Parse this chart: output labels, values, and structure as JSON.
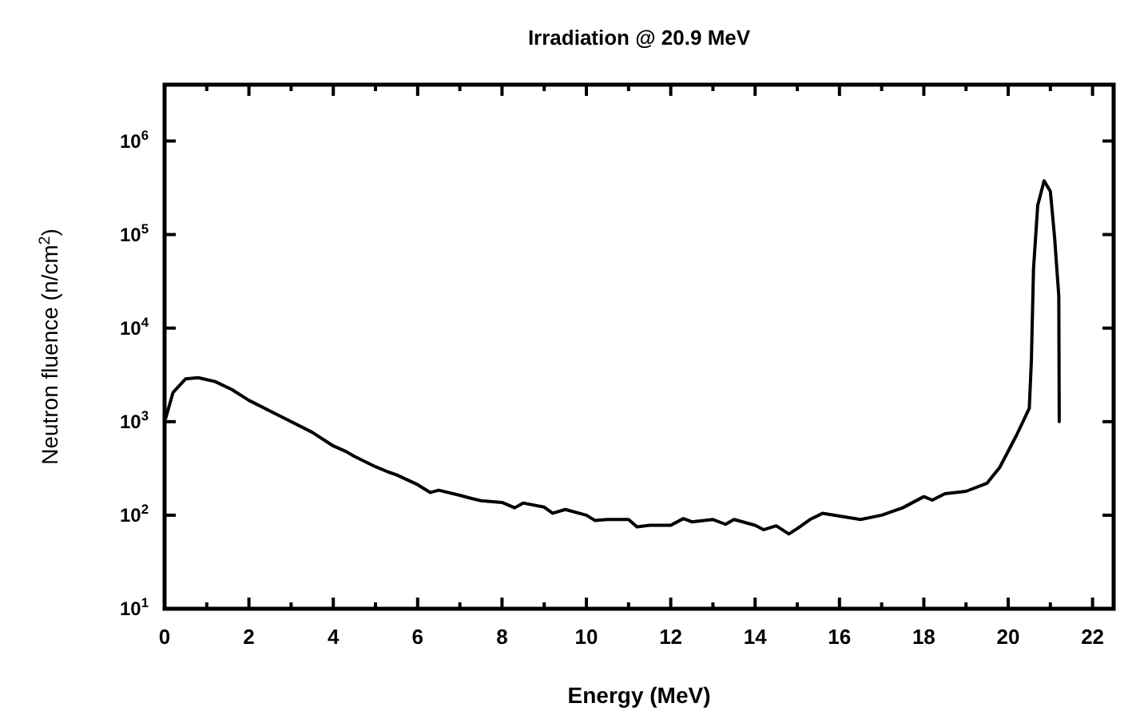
{
  "chart_data": {
    "type": "line",
    "title": "Irradiation @ 20.9 MeV",
    "xlabel": "Energy (MeV)",
    "ylabel": "Neutron fluence (n/cm$^{2}$)",
    "log": "y",
    "grid": false,
    "line_style": "solid",
    "xlim": [
      0,
      22.5
    ],
    "xticks": [
      0,
      {
        "value": 1,
        "label": null
      },
      2,
      {
        "value": 3,
        "label": null
      },
      4,
      {
        "value": 5,
        "label": null
      },
      6,
      {
        "value": 7,
        "label": null
      },
      8,
      {
        "value": 9,
        "label": null
      },
      10,
      {
        "value": 11,
        "label": null
      },
      12,
      {
        "value": 13,
        "label": null
      },
      14,
      {
        "value": 15,
        "label": null
      },
      16,
      {
        "value": 17,
        "label": null
      },
      18,
      {
        "value": 19,
        "label": null
      },
      20,
      {
        "value": 21,
        "label": null
      },
      22
    ],
    "ylim": [
      10,
      4000000
    ],
    "yticks": [
      {
        "value": 10,
        "label": "10$^{1}$"
      },
      {
        "value": 100,
        "label": "10$^{2}$"
      },
      {
        "value": 1000,
        "label": "10$^{3}$"
      },
      {
        "value": 10000,
        "label": "10$^{4}$"
      },
      {
        "value": 100000,
        "label": "10$^{5}$"
      },
      {
        "value": 1000000,
        "label": "10$^{6}$"
      }
    ],
    "series": [
      {
        "color": "#000000",
        "x": [
          0.03,
          0.2,
          0.5,
          0.8,
          1.2,
          1.6,
          2,
          2.5,
          3,
          3.5,
          4,
          4.3,
          4.5,
          5,
          5.3,
          5.5,
          6,
          6.3,
          6.5,
          7,
          7.3,
          7.5,
          8,
          8.3,
          8.5,
          9,
          9.2,
          9.5,
          10,
          10.2,
          10.5,
          11,
          11.2,
          11.5,
          12,
          12.3,
          12.5,
          13,
          13.3,
          13.5,
          14,
          14.2,
          14.5,
          14.8,
          15,
          15.3,
          15.6,
          16,
          16.5,
          17,
          17.5,
          18,
          18.2,
          18.5,
          19,
          19.5,
          19.8,
          20.2,
          20.5,
          20.55,
          20.6,
          20.7,
          20.85,
          21,
          21.1,
          21.2,
          21.21
        ],
        "values": [
          1100,
          2050,
          2870,
          2950,
          2680,
          2200,
          1690,
          1300,
          1000,
          770,
          550,
          480,
          425,
          330,
          290,
          270,
          212,
          175,
          185,
          163,
          150,
          143,
          137,
          120,
          135,
          122,
          105,
          115,
          100,
          88,
          90,
          90,
          75,
          78,
          78,
          92,
          85,
          90,
          80,
          90,
          78,
          70,
          77,
          63,
          72,
          90,
          105,
          98,
          90,
          100,
          120,
          158,
          145,
          170,
          180,
          220,
          325,
          720,
          1390,
          4540,
          42700,
          205000,
          375000,
          290000,
          93000,
          22000,
          1000
        ]
      }
    ]
  }
}
